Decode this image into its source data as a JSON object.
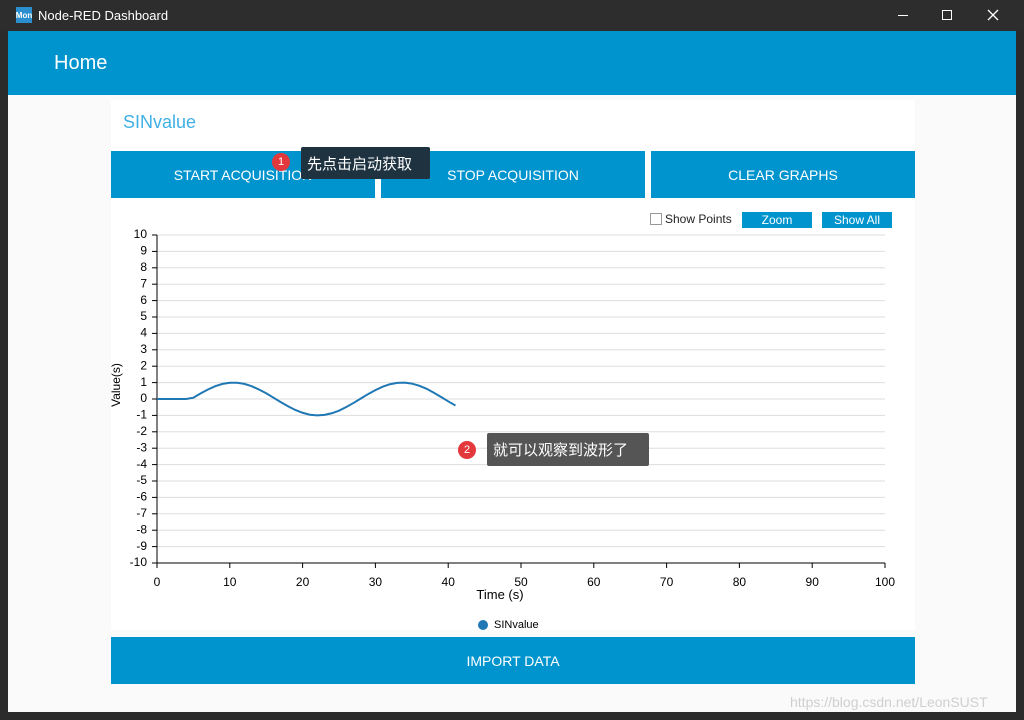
{
  "window": {
    "icon": "Mon",
    "title": "Node-RED Dashboard"
  },
  "header": {
    "title": "Home"
  },
  "card": {
    "title": "SINvalue",
    "buttons": [
      "START ACQUISITION",
      "STOP ACQUISITION",
      "CLEAR GRAPHS"
    ],
    "import_button": "IMPORT DATA"
  },
  "chart_controls": {
    "show_points": "Show Points",
    "zoom": "Zoom",
    "show_all": "Show All"
  },
  "chart_data": {
    "type": "line",
    "xlabel": "Time (s)",
    "ylabel": "Value(s)",
    "x": [
      0,
      1,
      2,
      3,
      4,
      5,
      6,
      7,
      8,
      9,
      10,
      11,
      12,
      13,
      14,
      15,
      16,
      17,
      18,
      19,
      20,
      21,
      22,
      23,
      24,
      25,
      26,
      27,
      28,
      29,
      30,
      31,
      32,
      33,
      34,
      35,
      36,
      37,
      38,
      39,
      40,
      41
    ],
    "series": [
      {
        "name": "SINvalue",
        "color": "#1f77b4",
        "values": [
          0,
          0,
          0,
          0,
          0,
          0.08,
          0.34,
          0.58,
          0.78,
          0.92,
          0.99,
          0.99,
          0.92,
          0.78,
          0.58,
          0.35,
          0.08,
          -0.19,
          -0.44,
          -0.67,
          -0.84,
          -0.96,
          -1.0,
          -0.97,
          -0.87,
          -0.71,
          -0.49,
          -0.24,
          0.03,
          0.3,
          0.54,
          0.75,
          0.9,
          0.98,
          1.0,
          0.94,
          0.81,
          0.63,
          0.39,
          0.13,
          -0.14,
          -0.4
        ]
      }
    ],
    "xlim": [
      0,
      100
    ],
    "ylim": [
      -10,
      10
    ],
    "xticks": [
      0,
      10,
      20,
      30,
      40,
      50,
      60,
      70,
      80,
      90,
      100
    ],
    "yticks": [
      -10,
      -9,
      -8,
      -7,
      -6,
      -5,
      -4,
      -3,
      -2,
      -1,
      0,
      1,
      2,
      3,
      4,
      5,
      6,
      7,
      8,
      9,
      10
    ],
    "grid": true,
    "legend": "bottom"
  },
  "annotations": [
    {
      "number": "1",
      "text": "先点击启动获取"
    },
    {
      "number": "2",
      "text": "就可以观察到波形了"
    }
  ],
  "watermark": "https://blog.csdn.net/LeonSUST"
}
